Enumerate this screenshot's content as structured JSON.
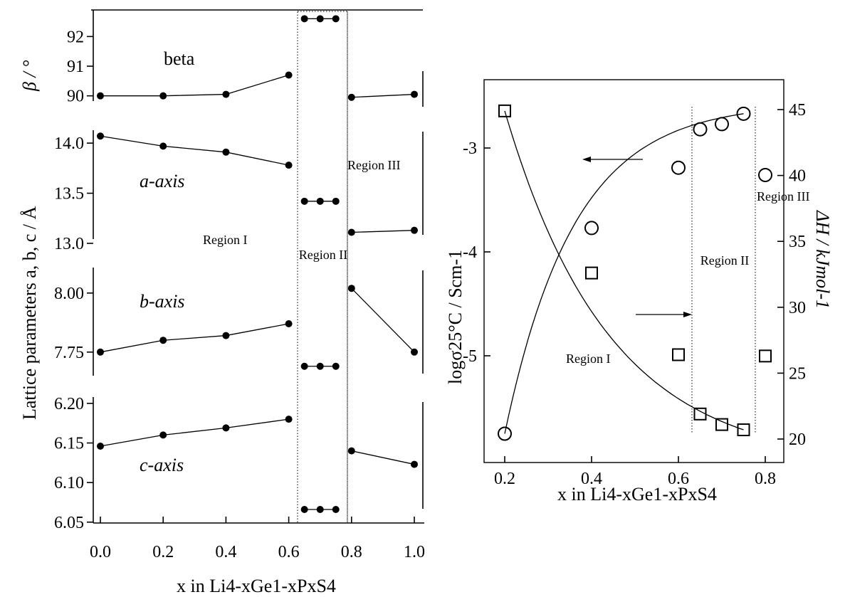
{
  "chart_data": [
    {
      "type": "line",
      "ylabel": "Lattice parameters a, b, c / Å",
      "xlabel": "x in Li4-xGe1-xPxS4",
      "xlim": [
        0.0,
        1.0
      ],
      "xticks": [
        "0.0",
        "0.2",
        "0.4",
        "0.6",
        "0.8",
        "1.0"
      ],
      "region_labels": [
        "Region I",
        "Region II",
        "Region III"
      ],
      "panels": [
        {
          "id": "beta",
          "label": "beta",
          "axis_label": "β / °",
          "ylim": [
            89.8,
            92.8
          ],
          "yticks": [
            "90",
            "91",
            "92"
          ],
          "region_I": {
            "x": [
              0.0,
              0.2,
              0.4,
              0.6
            ],
            "y": [
              90.0,
              90.0,
              90.05,
              90.7
            ]
          },
          "region_II": {
            "x": [
              0.65,
              0.7,
              0.75
            ],
            "y": [
              92.6,
              92.6,
              92.6
            ]
          },
          "region_III": {
            "x": [
              0.8,
              1.0
            ],
            "y": [
              89.95,
              90.05
            ]
          }
        },
        {
          "id": "a-axis",
          "label": "a-axis",
          "ylim": [
            13.0,
            14.15
          ],
          "yticks": [
            "13.0",
            "13.5",
            "14.0"
          ],
          "region_I": {
            "x": [
              0.0,
              0.2,
              0.4,
              0.6
            ],
            "y": [
              14.07,
              13.97,
              13.91,
              13.78
            ]
          },
          "region_II": {
            "x": [
              0.65,
              0.7,
              0.75
            ],
            "y": [
              13.42,
              13.42,
              13.42
            ]
          },
          "region_III": {
            "x": [
              0.8,
              1.0
            ],
            "y": [
              13.11,
              13.13
            ]
          }
        },
        {
          "id": "b-axis",
          "label": "b-axis",
          "ylim": [
            7.65,
            8.12
          ],
          "yticks": [
            "7.75",
            "8.00"
          ],
          "region_I": {
            "x": [
              0.0,
              0.2,
              0.4,
              0.6
            ],
            "y": [
              7.75,
              7.8,
              7.82,
              7.87
            ]
          },
          "region_II": {
            "x": [
              0.65,
              0.7,
              0.75
            ],
            "y": [
              7.69,
              7.69,
              7.69
            ]
          },
          "region_III": {
            "x": [
              0.8,
              1.0
            ],
            "y": [
              8.02,
              7.75
            ]
          }
        },
        {
          "id": "c-axis",
          "label": "c-axis",
          "ylim": [
            6.048,
            6.208
          ],
          "yticks": [
            "6.05",
            "6.10",
            "6.15",
            "6.20"
          ],
          "region_I": {
            "x": [
              0.0,
              0.2,
              0.4,
              0.6
            ],
            "y": [
              6.146,
              6.16,
              6.169,
              6.18
            ]
          },
          "region_II": {
            "x": [
              0.65,
              0.7,
              0.75
            ],
            "y": [
              6.066,
              6.066,
              6.066
            ]
          },
          "region_III": {
            "x": [
              0.8,
              1.0
            ],
            "y": [
              6.14,
              6.123
            ]
          }
        }
      ]
    },
    {
      "type": "scatter",
      "xlabel": "x in Li4-xGe1-xPxS4",
      "ylabel_left": "logσ25°C / Scm-1",
      "ylabel_right": "ΔH / kJmol-1",
      "xlim": [
        0.15,
        0.83
      ],
      "xticks": [
        "0.2",
        "0.4",
        "0.6",
        "0.8"
      ],
      "ylim_left": [
        -5.9,
        -2.3
      ],
      "yticks_left": [
        "-3",
        "-4",
        "-5"
      ],
      "ylim_right": [
        18.8,
        47.5
      ],
      "yticks_right": [
        "20",
        "25",
        "30",
        "35",
        "40",
        "45"
      ],
      "region_labels": [
        "Region I",
        "Region II",
        "Region III"
      ],
      "series": [
        {
          "marker": "circle",
          "axis": "left",
          "x": [
            0.2,
            0.4,
            0.6,
            0.65,
            0.7,
            0.75,
            0.8
          ],
          "y": [
            -5.75,
            -3.77,
            -3.19,
            -2.82,
            -2.77,
            -2.67,
            -3.26
          ]
        },
        {
          "marker": "square",
          "axis": "right",
          "x": [
            0.2,
            0.4,
            0.6,
            0.65,
            0.7,
            0.75,
            0.8
          ],
          "y": [
            44.9,
            32.6,
            26.4,
            21.9,
            21.1,
            20.7,
            26.3
          ]
        }
      ]
    }
  ]
}
